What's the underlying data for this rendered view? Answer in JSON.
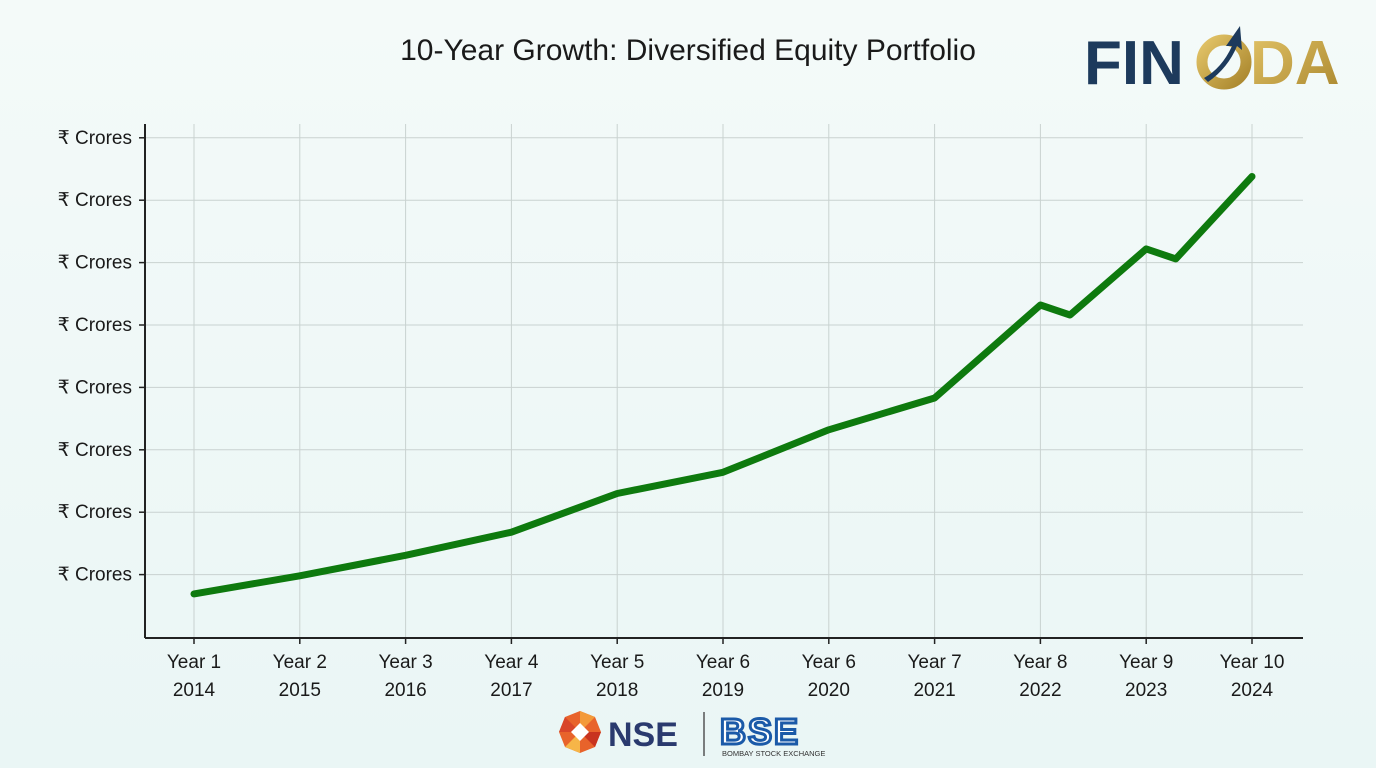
{
  "title": "10-Year Growth: Diversified Equity Portfolio",
  "brand": {
    "logo_text_left": "FIN",
    "logo_text_right": "DA",
    "colors": {
      "navy": "#1d3a5c",
      "gold": "#c9a544"
    }
  },
  "footer": {
    "nse_label": "NSE",
    "bse_label": "BSE",
    "bse_subtitle": "BOMBAY STOCK EXCHANGE"
  },
  "chart_data": {
    "type": "line",
    "title": "10-Year Growth: Diversified Equity Portfolio",
    "xlabel": "",
    "ylabel": "",
    "y_tick_labels": [
      "₹ Crores",
      "₹ Crores",
      "₹ Crores",
      "₹ Crores",
      "₹ Crores",
      "₹ Crores",
      "₹ Crores",
      "₹ Crores"
    ],
    "ylim": [
      0,
      8.8
    ],
    "x_categories": [
      {
        "line1": "Year 1",
        "line2": "2014"
      },
      {
        "line1": "Year 2",
        "line2": "2015"
      },
      {
        "line1": "Year 3",
        "line2": "2016"
      },
      {
        "line1": "Year 4",
        "line2": "2017"
      },
      {
        "line1": "Year 5",
        "line2": "2018"
      },
      {
        "line1": "Year 6",
        "line2": "2019"
      },
      {
        "line1": "Year 6",
        "line2": "2020"
      },
      {
        "line1": "Year 7",
        "line2": "2021"
      },
      {
        "line1": "Year 8",
        "line2": "2022"
      },
      {
        "line1": "Year 9",
        "line2": "2023"
      },
      {
        "line1": "Year 10",
        "line2": "2024"
      }
    ],
    "grid": true,
    "series": [
      {
        "color": "#0e7a0e",
        "points": [
          [
            0,
            0.69
          ],
          [
            1,
            0.98
          ],
          [
            2,
            1.31
          ],
          [
            3,
            1.68
          ],
          [
            4,
            2.3
          ],
          [
            5,
            2.64
          ],
          [
            6,
            3.32
          ],
          [
            7,
            3.83
          ],
          [
            8,
            5.32
          ],
          [
            8.28,
            5.16
          ],
          [
            9,
            6.22
          ],
          [
            9.28,
            6.06
          ],
          [
            10,
            7.38
          ]
        ]
      }
    ]
  }
}
